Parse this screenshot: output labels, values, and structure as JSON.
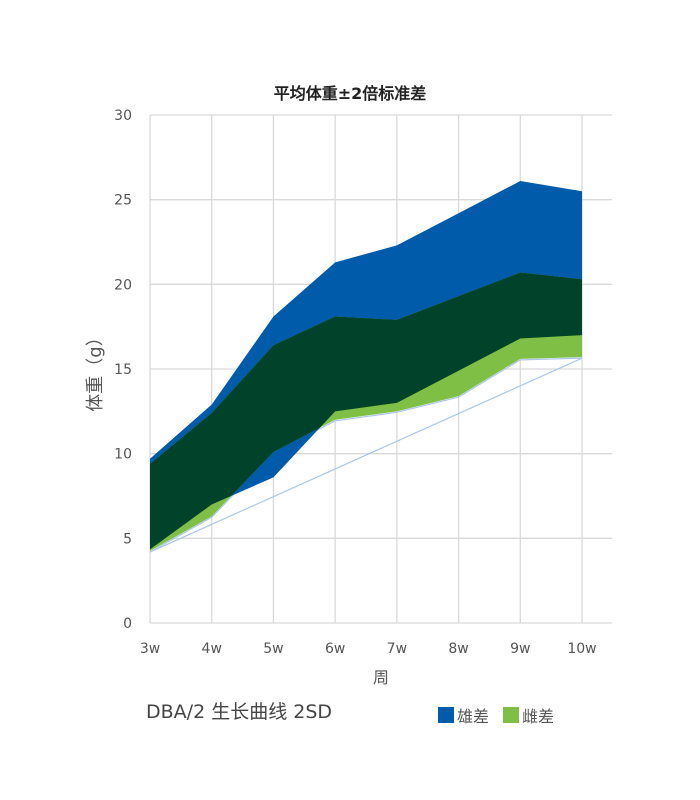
{
  "chart_data": {
    "type": "area",
    "subtype": "range-band",
    "title": "平均体重±2倍标准差",
    "xlabel": "周",
    "ylabel": "体重（g）",
    "categories": [
      "3w",
      "4w",
      "5w",
      "6w",
      "7w",
      "8w",
      "9w",
      "10w"
    ],
    "ylim": [
      0,
      30
    ],
    "yticks": [
      0,
      5,
      10,
      15,
      20,
      25,
      30
    ],
    "grid": true,
    "legend_position": "bottom-right",
    "series": [
      {
        "name": "雄差",
        "color": "#005BAA",
        "upper": [
          9.7,
          12.9,
          18.1,
          21.3,
          22.3,
          24.2,
          26.1,
          25.5
        ],
        "lower": [
          4.35,
          7.0,
          8.6,
          12.5,
          13.0,
          14.9,
          16.8,
          17.0
        ]
      },
      {
        "name": "雌差",
        "color": "#7FBF45",
        "upper": [
          9.4,
          12.4,
          16.4,
          18.1,
          17.9,
          19.3,
          20.7,
          20.3
        ],
        "lower": [
          4.25,
          6.3,
          10.1,
          12.0,
          12.5,
          13.4,
          15.6,
          15.7
        ]
      }
    ],
    "overlap_color": "#00432A"
  },
  "footer": "DBA/2  生长曲线 2SD"
}
